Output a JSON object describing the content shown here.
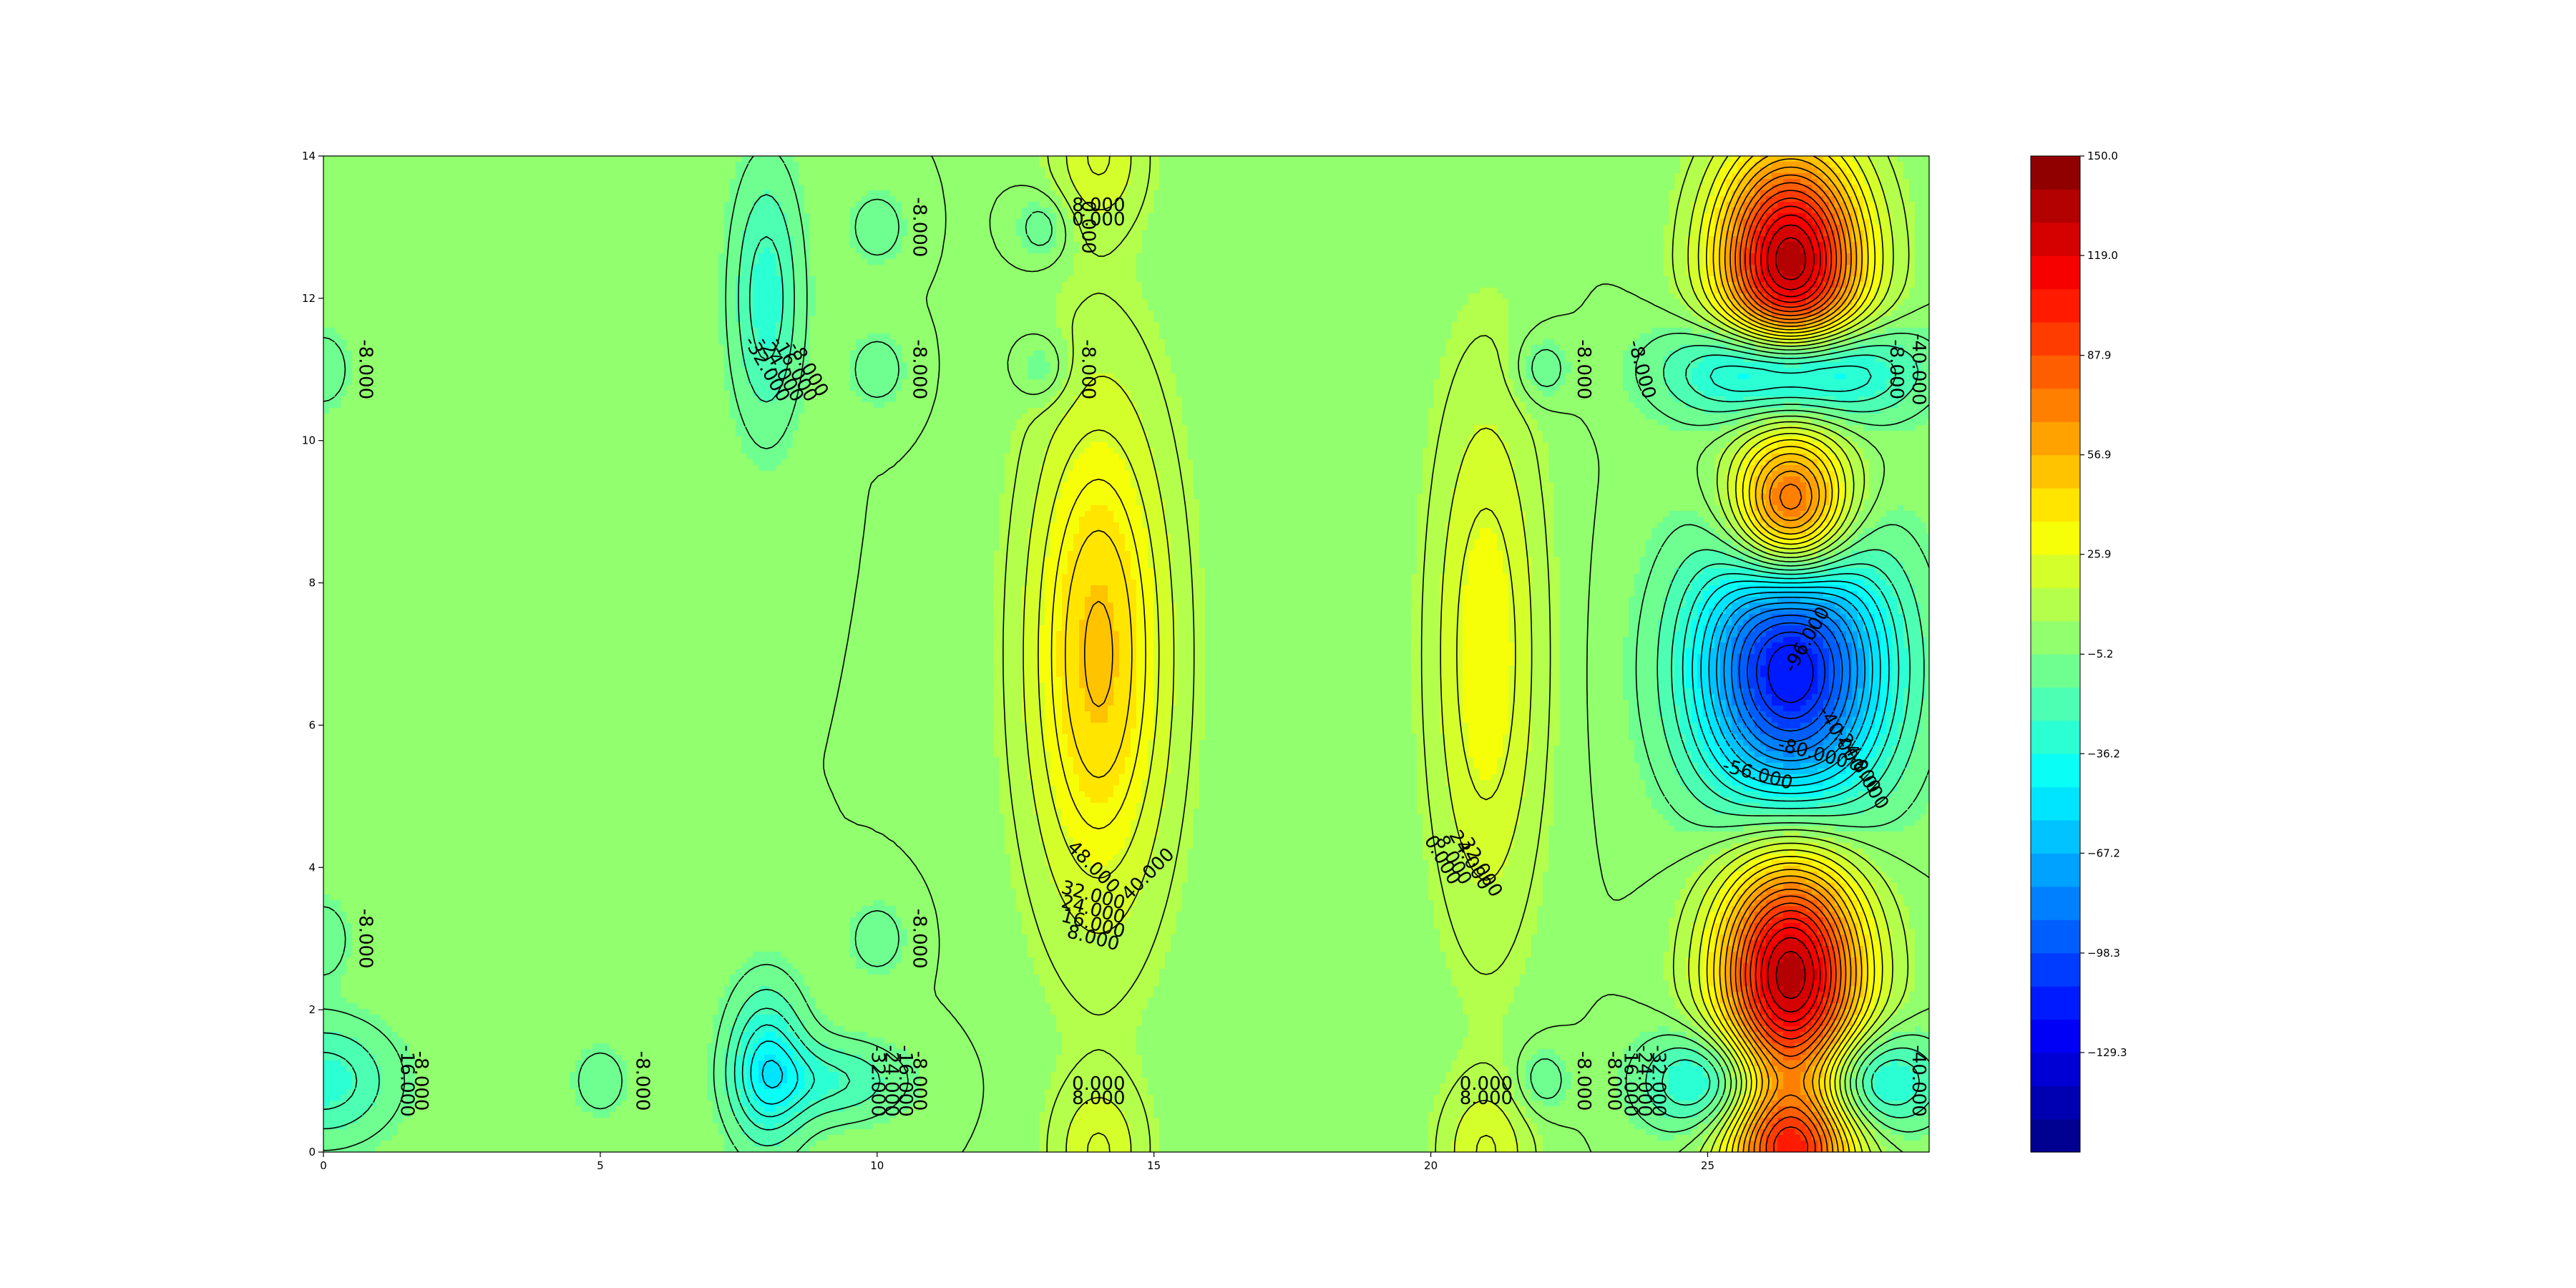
{
  "chart_data": {
    "type": "heatmap",
    "subtype": "filled-contour",
    "title": "",
    "xlabel": "",
    "ylabel": "",
    "xlim": [
      0,
      29
    ],
    "ylim": [
      0,
      14
    ],
    "x_ticks": [
      "0",
      "5",
      "10",
      "15",
      "20",
      "25"
    ],
    "y_ticks": [
      "0",
      "2",
      "4",
      "6",
      "8",
      "10",
      "12",
      "14"
    ],
    "colorbar": {
      "colormap": "jet",
      "range": [
        -160.3,
        150.0
      ],
      "tick_labels": [
        "150.0",
        "119.0",
        "87.9",
        "56.9",
        "25.9",
        "−5.2",
        "−36.2",
        "−67.2",
        "−98.3",
        "−129.3"
      ],
      "tick_values": [
        150.0,
        119.0,
        87.9,
        56.9,
        25.9,
        -5.2,
        -36.2,
        -67.2,
        -98.3,
        -129.3
      ]
    },
    "background_value": 0,
    "features": [
      {
        "kind": "peak",
        "x": 14.0,
        "y": 7.0,
        "value": 50,
        "sx": 0.9,
        "sy": 2.6
      },
      {
        "kind": "peak",
        "x": 21.0,
        "y": 7.0,
        "value": 32,
        "sx": 0.7,
        "sy": 2.7
      },
      {
        "kind": "peak",
        "x": 14.0,
        "y": 14.0,
        "value": 24,
        "sx": 0.6,
        "sy": 0.7
      },
      {
        "kind": "peak",
        "x": 14.0,
        "y": 0.0,
        "value": 24,
        "sx": 0.6,
        "sy": 0.7
      },
      {
        "kind": "peak",
        "x": 21.0,
        "y": 0.0,
        "value": 24,
        "sx": 0.6,
        "sy": 0.7
      },
      {
        "kind": "peak",
        "x": 26.5,
        "y": 12.5,
        "value": 135,
        "sx": 0.9,
        "sy": 1.1
      },
      {
        "kind": "peak",
        "x": 26.5,
        "y": 9.0,
        "value": 105,
        "sx": 0.75,
        "sy": 0.75
      },
      {
        "kind": "peak",
        "x": 26.5,
        "y": 2.5,
        "value": 135,
        "sx": 0.9,
        "sy": 1.2
      },
      {
        "kind": "peak",
        "x": 26.5,
        "y": 0.0,
        "value": 90,
        "sx": 0.8,
        "sy": 0.6
      },
      {
        "kind": "trough",
        "x": 26.5,
        "y": 6.8,
        "value": -120,
        "sx": 1.2,
        "sy": 1.4
      },
      {
        "kind": "trough",
        "x": 26.5,
        "y": 11.0,
        "value": -85,
        "sx": 1.3,
        "sy": 0.5
      },
      {
        "kind": "trough",
        "x": 25.0,
        "y": 1.0,
        "value": -45,
        "sx": 0.8,
        "sy": 0.5
      },
      {
        "kind": "trough",
        "x": 28.0,
        "y": 1.0,
        "value": -45,
        "sx": 0.8,
        "sy": 0.5
      },
      {
        "kind": "trough",
        "x": 8.0,
        "y": 12.0,
        "value": -30,
        "sx": 0.45,
        "sy": 1.3
      },
      {
        "kind": "trough",
        "x": 8.0,
        "y": 1.2,
        "value": -40,
        "sx": 0.5,
        "sy": 0.8
      },
      {
        "kind": "trough",
        "x": 9.2,
        "y": 1.0,
        "value": -25,
        "sx": 0.9,
        "sy": 0.4
      },
      {
        "kind": "trough",
        "x": 0.0,
        "y": 1.0,
        "value": -30,
        "sx": 0.9,
        "sy": 0.6
      },
      {
        "kind": "trough",
        "x": 10.0,
        "y": 13.0,
        "value": -15,
        "sx": 0.35,
        "sy": 0.35
      },
      {
        "kind": "trough",
        "x": 10.0,
        "y": 11.0,
        "value": -15,
        "sx": 0.35,
        "sy": 0.35
      },
      {
        "kind": "trough",
        "x": 13.0,
        "y": 13.0,
        "value": -15,
        "sx": 0.35,
        "sy": 0.35
      },
      {
        "kind": "trough",
        "x": 13.0,
        "y": 11.0,
        "value": -15,
        "sx": 0.35,
        "sy": 0.35
      },
      {
        "kind": "trough",
        "x": 22.0,
        "y": 11.0,
        "value": -15,
        "sx": 0.35,
        "sy": 0.35
      },
      {
        "kind": "trough",
        "x": 10.0,
        "y": 3.0,
        "value": -15,
        "sx": 0.35,
        "sy": 0.35
      },
      {
        "kind": "trough",
        "x": 5.0,
        "y": 1.0,
        "value": -15,
        "sx": 0.35,
        "sy": 0.35
      },
      {
        "kind": "trough",
        "x": 22.0,
        "y": 1.0,
        "value": -15,
        "sx": 0.35,
        "sy": 0.35
      },
      {
        "kind": "trough",
        "x": 0.0,
        "y": 11.0,
        "value": -15,
        "sx": 0.35,
        "sy": 0.4
      },
      {
        "kind": "trough",
        "x": 0.0,
        "y": 3.0,
        "value": -15,
        "sx": 0.35,
        "sy": 0.4
      }
    ],
    "contour_labels": [
      {
        "text": "-8.000",
        "x": 0.75,
        "y": 11.0,
        "rotation": 90
      },
      {
        "text": "-8.000",
        "x": 0.75,
        "y": 3.0,
        "rotation": 90
      },
      {
        "text": "-8.000",
        "x": 1.75,
        "y": 1.0,
        "rotation": 90
      },
      {
        "text": "-16.000",
        "x": 1.5,
        "y": 1.0,
        "rotation": 90
      },
      {
        "text": "-8.000",
        "x": 5.75,
        "y": 1.0,
        "rotation": 90
      },
      {
        "text": "-32.000",
        "x": 8.0,
        "y": 11.0,
        "rotation": 60
      },
      {
        "text": "-24.000",
        "x": 8.25,
        "y": 11.0,
        "rotation": 60
      },
      {
        "text": "-16.000",
        "x": 8.5,
        "y": 11.0,
        "rotation": 60
      },
      {
        "text": "-8.000",
        "x": 8.75,
        "y": 11.0,
        "rotation": 60
      },
      {
        "text": "-8.000",
        "x": 10.75,
        "y": 13.0,
        "rotation": 90
      },
      {
        "text": "-8.000",
        "x": 10.75,
        "y": 11.0,
        "rotation": 90
      },
      {
        "text": "-8.000",
        "x": 10.75,
        "y": 3.0,
        "rotation": 90
      },
      {
        "text": "-8.000",
        "x": 10.75,
        "y": 1.0,
        "rotation": 90
      },
      {
        "text": "-16.000",
        "x": 10.5,
        "y": 1.0,
        "rotation": 90
      },
      {
        "text": "-24.000",
        "x": 10.25,
        "y": 1.0,
        "rotation": 90
      },
      {
        "text": "-32.000",
        "x": 10.0,
        "y": 1.0,
        "rotation": 90
      },
      {
        "text": "8.000",
        "x": 14.0,
        "y": 13.3,
        "rotation": 0
      },
      {
        "text": "0.000",
        "x": 14.0,
        "y": 13.1,
        "rotation": 0
      },
      {
        "text": "0.000",
        "x": 13.8,
        "y": 13.0,
        "rotation": 90
      },
      {
        "text": "-8.000",
        "x": 13.8,
        "y": 11.0,
        "rotation": 90
      },
      {
        "text": "48.000",
        "x": 13.9,
        "y": 4.0,
        "rotation": 45
      },
      {
        "text": "40.000",
        "x": 14.9,
        "y": 3.9,
        "rotation": -45
      },
      {
        "text": "32.000",
        "x": 13.9,
        "y": 3.6,
        "rotation": 15
      },
      {
        "text": "24.000",
        "x": 13.9,
        "y": 3.4,
        "rotation": 15
      },
      {
        "text": "16.000",
        "x": 13.9,
        "y": 3.2,
        "rotation": 15
      },
      {
        "text": "8.000",
        "x": 13.9,
        "y": 3.0,
        "rotation": 15
      },
      {
        "text": "0.000",
        "x": 14.0,
        "y": 0.95,
        "rotation": 0
      },
      {
        "text": "8.000",
        "x": 14.0,
        "y": 0.75,
        "rotation": 0
      },
      {
        "text": "32.000",
        "x": 20.9,
        "y": 4.0,
        "rotation": 60
      },
      {
        "text": "24.000",
        "x": 20.7,
        "y": 4.1,
        "rotation": 60
      },
      {
        "text": "8.000",
        "x": 20.4,
        "y": 4.1,
        "rotation": 60
      },
      {
        "text": "0.000",
        "x": 20.2,
        "y": 4.1,
        "rotation": 60
      },
      {
        "text": "0.000",
        "x": 21.0,
        "y": 0.95,
        "rotation": 0
      },
      {
        "text": "8.000",
        "x": 21.0,
        "y": 0.75,
        "rotation": 0
      },
      {
        "text": "-8.000",
        "x": 22.75,
        "y": 11.0,
        "rotation": 90
      },
      {
        "text": "-8.000",
        "x": 22.75,
        "y": 1.0,
        "rotation": 90
      },
      {
        "text": "-8.000",
        "x": 23.8,
        "y": 11.0,
        "rotation": 75
      },
      {
        "text": "-8.000",
        "x": 23.3,
        "y": 1.0,
        "rotation": 90
      },
      {
        "text": "-16.000",
        "x": 23.6,
        "y": 1.0,
        "rotation": 90
      },
      {
        "text": "-24.000",
        "x": 23.85,
        "y": 1.0,
        "rotation": 90
      },
      {
        "text": "-32.000",
        "x": 24.1,
        "y": 1.0,
        "rotation": 90
      },
      {
        "text": "-40.000",
        "x": 28.8,
        "y": 1.0,
        "rotation": 90
      },
      {
        "text": "-40.000",
        "x": 28.8,
        "y": 11.0,
        "rotation": 90
      },
      {
        "text": "-8.000",
        "x": 28.4,
        "y": 11.0,
        "rotation": 90
      },
      {
        "text": "-56.000",
        "x": 25.9,
        "y": 5.3,
        "rotation": 15
      },
      {
        "text": "-80.000",
        "x": 26.9,
        "y": 5.6,
        "rotation": 15
      },
      {
        "text": "-40.000",
        "x": 27.4,
        "y": 5.8,
        "rotation": 60
      },
      {
        "text": "-24.000",
        "x": 27.7,
        "y": 5.5,
        "rotation": 60
      },
      {
        "text": "-8.000",
        "x": 27.9,
        "y": 5.2,
        "rotation": 60
      },
      {
        "text": "-96.000",
        "x": 26.8,
        "y": 7.2,
        "rotation": -60
      }
    ]
  }
}
